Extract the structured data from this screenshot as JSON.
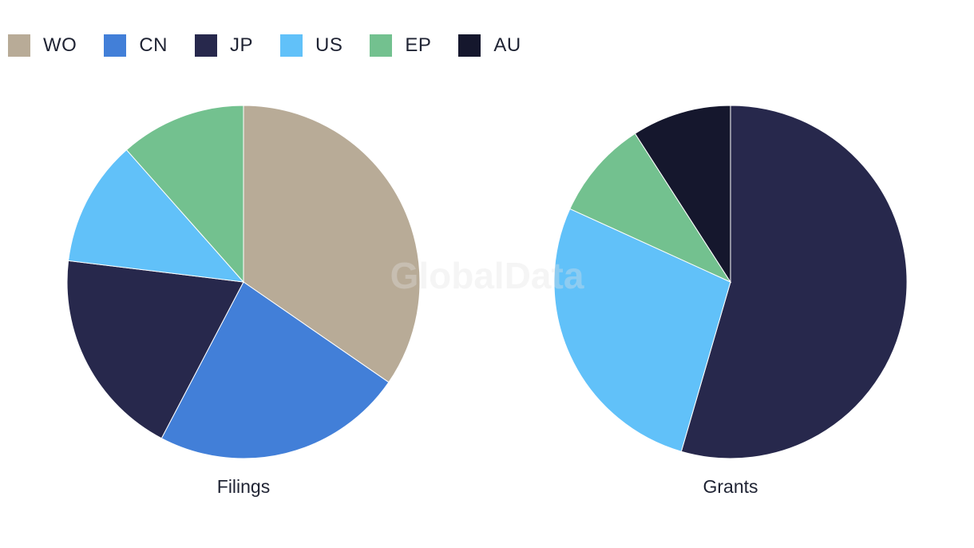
{
  "legend": [
    {
      "label": "WO",
      "color": "#b8ab97"
    },
    {
      "label": "CN",
      "color": "#427fd8"
    },
    {
      "label": "JP",
      "color": "#27284c"
    },
    {
      "label": "US",
      "color": "#61c1f9"
    },
    {
      "label": "EP",
      "color": "#73c18f"
    },
    {
      "label": "AU",
      "color": "#15172d"
    }
  ],
  "watermark": "GlobalData",
  "chart_data": [
    {
      "type": "pie",
      "title": "Filings",
      "legend_position": "top-left",
      "categories": [
        "WO",
        "CN",
        "JP",
        "US",
        "EP"
      ],
      "values": [
        33.3,
        22.2,
        18.5,
        11.1,
        11.1
      ],
      "colors": [
        "#b8ab97",
        "#427fd8",
        "#27284c",
        "#61c1f9",
        "#73c18f"
      ]
    },
    {
      "type": "pie",
      "title": "Grants",
      "legend_position": "top-left",
      "categories": [
        "JP",
        "US",
        "EP",
        "AU"
      ],
      "values": [
        54.5,
        27.3,
        9.1,
        9.1
      ],
      "colors": [
        "#27284c",
        "#61c1f9",
        "#73c18f",
        "#15172d"
      ]
    }
  ]
}
